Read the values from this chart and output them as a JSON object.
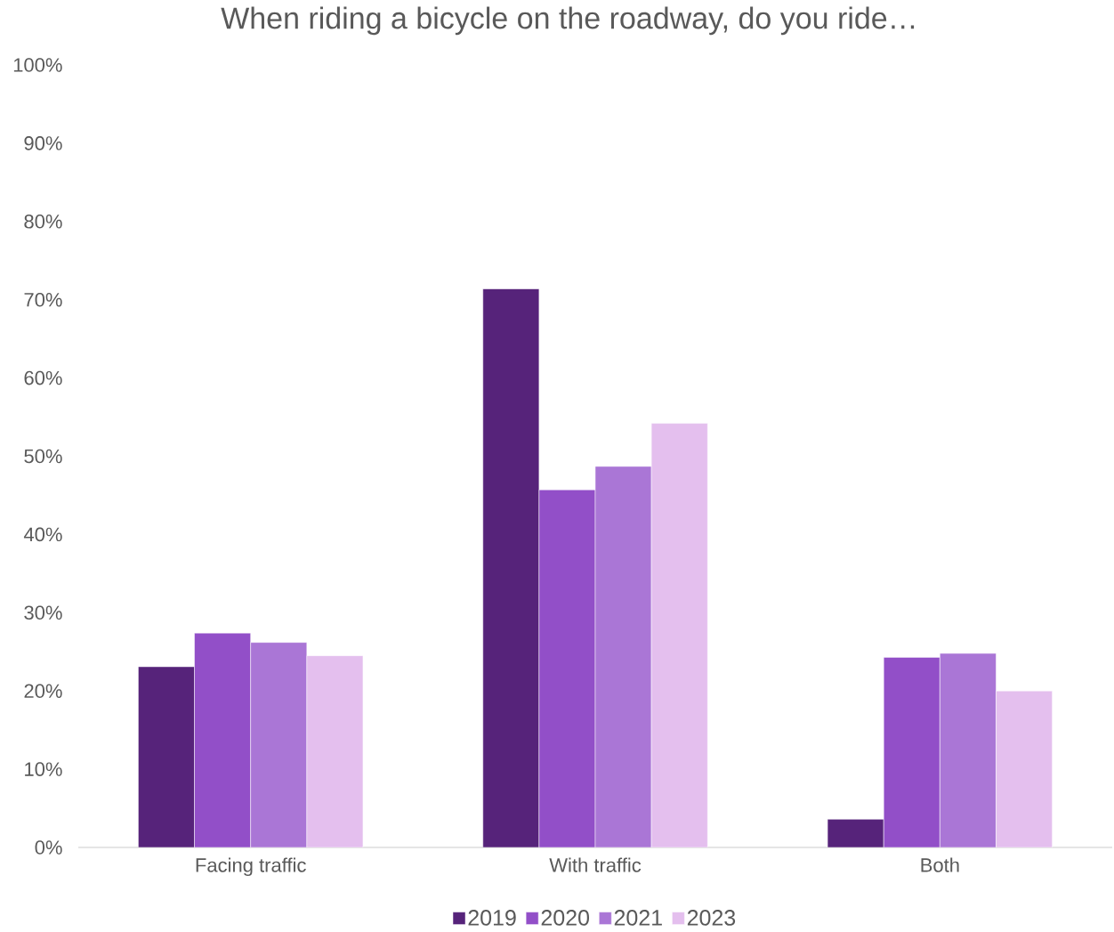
{
  "chart_data": {
    "type": "bar",
    "title": "When riding a bicycle on the roadway, do you ride…",
    "categories": [
      "Facing traffic",
      "With traffic",
      "Both"
    ],
    "series": [
      {
        "name": "2019",
        "color": "#56237a",
        "values": [
          23.1,
          71.4,
          3.6
        ]
      },
      {
        "name": "2020",
        "color": "#924fc8",
        "values": [
          27.4,
          45.7,
          24.3
        ]
      },
      {
        "name": "2021",
        "color": "#aa76d6",
        "values": [
          26.2,
          48.7,
          24.8
        ]
      },
      {
        "name": "2023",
        "color": "#e4bfee",
        "values": [
          24.5,
          54.2,
          20.0
        ]
      }
    ],
    "ylim": [
      0,
      100
    ],
    "yticks": [
      {
        "value": 0,
        "label": "0%"
      },
      {
        "value": 10,
        "label": "10%"
      },
      {
        "value": 20,
        "label": "20%"
      },
      {
        "value": 30,
        "label": "30%"
      },
      {
        "value": 40,
        "label": "40%"
      },
      {
        "value": 50,
        "label": "50%"
      },
      {
        "value": 60,
        "label": "60%"
      },
      {
        "value": 70,
        "label": "70%"
      },
      {
        "value": 80,
        "label": "80%"
      },
      {
        "value": 90,
        "label": "90%"
      },
      {
        "value": 100,
        "label": "100%"
      }
    ],
    "legend": "bottom"
  }
}
